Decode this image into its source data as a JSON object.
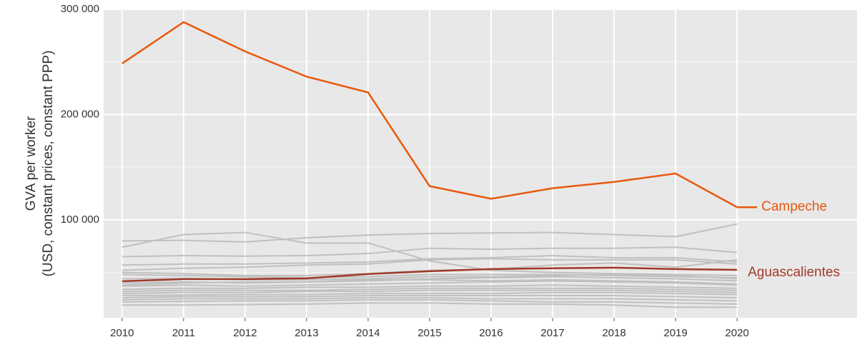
{
  "chart_data": {
    "type": "line",
    "ylabel": [
      "GVA per worker",
      "(USD, constant prices, constant PPP)"
    ],
    "x": [
      2010,
      2011,
      2012,
      2013,
      2014,
      2015,
      2016,
      2017,
      2018,
      2019,
      2020
    ],
    "xlim": [
      2009.7,
      2021.95
    ],
    "xticks": [
      2010,
      2011,
      2012,
      2013,
      2014,
      2015,
      2016,
      2017,
      2018,
      2019,
      2020
    ],
    "ylim": [
      7000,
      300000
    ],
    "yticks": [
      {
        "value": 100000,
        "label": "100 000"
      },
      {
        "value": 200000,
        "label": "200 000"
      },
      {
        "value": 300000,
        "label": "300 000"
      }
    ],
    "minor_yticks": [
      50000,
      150000,
      250000
    ],
    "grid": true,
    "series": [
      {
        "color": "#c0c0c0",
        "values": [
          74000,
          86000,
          88000,
          78000,
          78000,
          61000,
          52000,
          50000,
          49000,
          48000,
          47000
        ]
      },
      {
        "color": "#c0c0c0",
        "values": [
          80000,
          80500,
          79000,
          83000,
          85500,
          87000,
          87500,
          88000,
          86000,
          84000,
          96000
        ]
      },
      {
        "color": "#c0c0c0",
        "values": [
          65000,
          66000,
          65500,
          66000,
          68000,
          73000,
          72000,
          73000,
          73000,
          74000,
          69000
        ]
      },
      {
        "color": "#c0c0c0",
        "values": [
          57000,
          58000,
          58000,
          59000,
          60000,
          63000,
          64000,
          66000,
          64000,
          64000,
          60000
        ]
      },
      {
        "color": "#c0c0c0",
        "values": [
          52000,
          54000,
          55000,
          57000,
          58000,
          62000,
          63000,
          62000,
          62000,
          62000,
          58000
        ]
      },
      {
        "color": "#c0c0c0",
        "values": [
          50000,
          49000,
          47000,
          47000,
          49000,
          52000,
          53000,
          57000,
          59000,
          55000,
          62000
        ]
      },
      {
        "color": "#c0c0c0",
        "values": [
          48000,
          47000,
          46000,
          45000,
          46000,
          48000,
          48000,
          48000,
          47000,
          46000,
          45000
        ]
      },
      {
        "color": "#c0c0c0",
        "values": [
          44000,
          44500,
          43000,
          43000,
          44000,
          46000,
          46000,
          47000,
          48000,
          47000,
          44000
        ]
      },
      {
        "color": "#c0c0c0",
        "values": [
          40000,
          41000,
          40000,
          41000,
          42000,
          44000,
          45000,
          46000,
          45000,
          44000,
          42000
        ]
      },
      {
        "color": "#c0c0c0",
        "values": [
          38000,
          40000,
          41000,
          41000,
          43000,
          43000,
          42000,
          43000,
          42000,
          41000,
          39000
        ]
      },
      {
        "color": "#c0c0c0",
        "values": [
          37000,
          38000,
          37000,
          38000,
          39000,
          40000,
          41000,
          42000,
          41000,
          40000,
          38000
        ]
      },
      {
        "color": "#c0c0c0",
        "values": [
          34000,
          35000,
          35000,
          36000,
          36000,
          37000,
          37000,
          38000,
          37000,
          36000,
          35000
        ]
      },
      {
        "color": "#c0c0c0",
        "values": [
          32000,
          33000,
          33000,
          33000,
          34000,
          35000,
          35000,
          35000,
          35000,
          34000,
          33000
        ]
      },
      {
        "color": "#c0c0c0",
        "values": [
          30000,
          31000,
          31000,
          32000,
          32000,
          33000,
          33000,
          33000,
          33000,
          32000,
          31000
        ]
      },
      {
        "color": "#c0c0c0",
        "values": [
          28000,
          28500,
          29000,
          29000,
          30000,
          30000,
          30000,
          31000,
          31000,
          30000,
          29000
        ]
      },
      {
        "color": "#c0c0c0",
        "values": [
          26000,
          27000,
          27000,
          27000,
          28000,
          28000,
          28000,
          28000,
          28000,
          27000,
          26000
        ]
      },
      {
        "color": "#c0c0c0",
        "values": [
          24000,
          25000,
          25000,
          25000,
          26000,
          26000,
          25000,
          25000,
          25000,
          24000,
          23000
        ]
      },
      {
        "color": "#c0c0c0",
        "values": [
          22000,
          22500,
          23000,
          23000,
          24000,
          24000,
          23000,
          22000,
          22000,
          21000,
          20000
        ]
      },
      {
        "color": "#c0c0c0",
        "values": [
          19000,
          19000,
          19500,
          20000,
          21000,
          21000,
          20000,
          20000,
          19000,
          17000,
          17000
        ]
      },
      {
        "name": "Aguascalientes",
        "color": "#a0392a",
        "values": [
          41700,
          43700,
          43700,
          44400,
          48500,
          51200,
          53200,
          54000,
          54600,
          53200,
          52500
        ]
      },
      {
        "name": "Campeche",
        "color": "#e8580c",
        "values": [
          248500,
          287800,
          260000,
          236000,
          221000,
          132000,
          120000,
          130000,
          136000,
          144000,
          112000
        ]
      }
    ]
  }
}
